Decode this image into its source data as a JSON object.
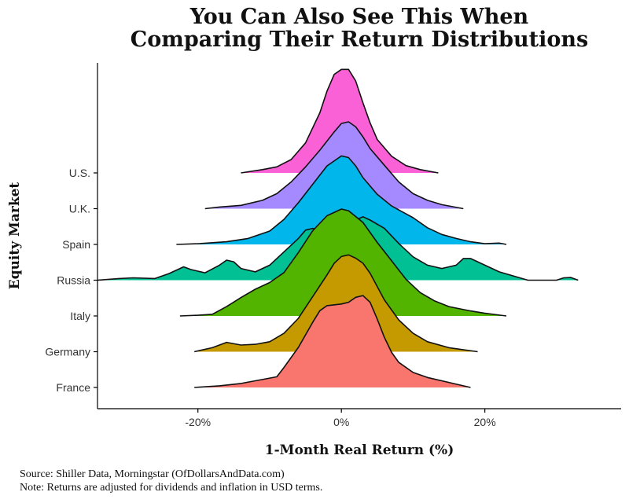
{
  "chart_data": {
    "type": "area",
    "subtype": "ridgeline",
    "title": [
      "You Can Also See This When",
      "Comparing Their Return Distributions"
    ],
    "xlabel": "1-Month Real Return (%)",
    "ylabel": "Equity Market",
    "xlim": [
      -34,
      39
    ],
    "x_ticks": [
      {
        "value": -20,
        "label": "-20%"
      },
      {
        "value": 0,
        "label": "0%"
      },
      {
        "value": 20,
        "label": "20%"
      }
    ],
    "grid": false,
    "legend": "none",
    "series": [
      {
        "name": "France",
        "color": "#F8766D",
        "points": [
          [
            -20.5,
            0
          ],
          [
            -17,
            0.05
          ],
          [
            -14,
            0.12
          ],
          [
            -12,
            0.2
          ],
          [
            -10,
            0.28
          ],
          [
            -9,
            0.32
          ],
          [
            -8,
            0.6
          ],
          [
            -6,
            1.2
          ],
          [
            -4,
            1.95
          ],
          [
            -3,
            2.3
          ],
          [
            -2,
            2.45
          ],
          [
            0,
            2.5
          ],
          [
            1,
            2.55
          ],
          [
            2,
            2.7
          ],
          [
            3,
            2.75
          ],
          [
            4,
            2.55
          ],
          [
            5,
            2.05
          ],
          [
            6,
            1.5
          ],
          [
            7,
            1.05
          ],
          [
            8,
            0.75
          ],
          [
            10,
            0.45
          ],
          [
            12,
            0.3
          ],
          [
            15,
            0.15
          ],
          [
            18,
            0
          ]
        ]
      },
      {
        "name": "Germany",
        "color": "#C49A00",
        "points": [
          [
            -20.5,
            0
          ],
          [
            -18,
            0.12
          ],
          [
            -16,
            0.28
          ],
          [
            -14,
            0.2
          ],
          [
            -12,
            0.22
          ],
          [
            -10,
            0.3
          ],
          [
            -8,
            0.55
          ],
          [
            -6,
            1.0
          ],
          [
            -4,
            1.65
          ],
          [
            -2,
            2.3
          ],
          [
            -1,
            2.65
          ],
          [
            0,
            2.85
          ],
          [
            1,
            2.9
          ],
          [
            2,
            2.8
          ],
          [
            3,
            2.65
          ],
          [
            4,
            2.35
          ],
          [
            5,
            1.95
          ],
          [
            6,
            1.55
          ],
          [
            8,
            0.95
          ],
          [
            10,
            0.55
          ],
          [
            12,
            0.3
          ],
          [
            15,
            0.12
          ],
          [
            19,
            0
          ]
        ]
      },
      {
        "name": "Italy",
        "color": "#53B400",
        "points": [
          [
            -22.5,
            0
          ],
          [
            -20,
            0.02
          ],
          [
            -18,
            0.05
          ],
          [
            -16,
            0.28
          ],
          [
            -14,
            0.55
          ],
          [
            -12,
            0.8
          ],
          [
            -10,
            1.0
          ],
          [
            -8,
            1.3
          ],
          [
            -6,
            1.9
          ],
          [
            -4,
            2.55
          ],
          [
            -2,
            3.0
          ],
          [
            0,
            3.2
          ],
          [
            1,
            3.15
          ],
          [
            3,
            2.8
          ],
          [
            5,
            2.2
          ],
          [
            7,
            1.65
          ],
          [
            9,
            1.1
          ],
          [
            11,
            0.7
          ],
          [
            13,
            0.45
          ],
          [
            15,
            0.28
          ],
          [
            18,
            0.15
          ],
          [
            20,
            0.08
          ],
          [
            23,
            0
          ]
        ]
      },
      {
        "name": "Russia",
        "color": "#00C094",
        "points": [
          [
            -34,
            0
          ],
          [
            -31,
            0.05
          ],
          [
            -29,
            0.07
          ],
          [
            -26,
            0.05
          ],
          [
            -24,
            0.2
          ],
          [
            -22,
            0.4
          ],
          [
            -21,
            0.32
          ],
          [
            -19,
            0.22
          ],
          [
            -17,
            0.45
          ],
          [
            -16,
            0.6
          ],
          [
            -15,
            0.55
          ],
          [
            -14,
            0.35
          ],
          [
            -12,
            0.25
          ],
          [
            -10,
            0.45
          ],
          [
            -8,
            0.85
          ],
          [
            -6,
            1.25
          ],
          [
            -5,
            1.5
          ],
          [
            -4,
            1.55
          ],
          [
            -2,
            1.4
          ],
          [
            0,
            1.45
          ],
          [
            1,
            1.65
          ],
          [
            2,
            1.8
          ],
          [
            3,
            1.9
          ],
          [
            4,
            1.8
          ],
          [
            6,
            1.55
          ],
          [
            8,
            1.1
          ],
          [
            10,
            0.7
          ],
          [
            12,
            0.45
          ],
          [
            14,
            0.35
          ],
          [
            16,
            0.45
          ],
          [
            17,
            0.65
          ],
          [
            18,
            0.65
          ],
          [
            20,
            0.45
          ],
          [
            22,
            0.25
          ],
          [
            26,
            0
          ],
          [
            30,
            0
          ],
          [
            31,
            0.07
          ],
          [
            32,
            0.08
          ],
          [
            33,
            0
          ]
        ]
      },
      {
        "name": "Spain",
        "color": "#00B6EB",
        "points": [
          [
            -23,
            0
          ],
          [
            -20,
            0.02
          ],
          [
            -16,
            0.08
          ],
          [
            -13,
            0.18
          ],
          [
            -10,
            0.4
          ],
          [
            -8,
            0.75
          ],
          [
            -6,
            1.25
          ],
          [
            -4,
            1.8
          ],
          [
            -2,
            2.35
          ],
          [
            0,
            2.65
          ],
          [
            1,
            2.6
          ],
          [
            2,
            2.35
          ],
          [
            3,
            2.0
          ],
          [
            5,
            1.5
          ],
          [
            7,
            1.15
          ],
          [
            10,
            0.8
          ],
          [
            12,
            0.5
          ],
          [
            14,
            0.3
          ],
          [
            16,
            0.18
          ],
          [
            18,
            0.08
          ],
          [
            20,
            0.02
          ],
          [
            22,
            0.04
          ],
          [
            23,
            0
          ]
        ]
      },
      {
        "name": "U.K.",
        "color": "#A58AFF",
        "points": [
          [
            -19,
            0
          ],
          [
            -17,
            0.05
          ],
          [
            -14,
            0.1
          ],
          [
            -11,
            0.25
          ],
          [
            -9,
            0.45
          ],
          [
            -7,
            0.8
          ],
          [
            -5,
            1.25
          ],
          [
            -3,
            1.75
          ],
          [
            -1,
            2.3
          ],
          [
            0,
            2.55
          ],
          [
            1,
            2.6
          ],
          [
            2,
            2.45
          ],
          [
            3,
            2.15
          ],
          [
            4,
            1.8
          ],
          [
            6,
            1.3
          ],
          [
            8,
            0.8
          ],
          [
            10,
            0.45
          ],
          [
            12,
            0.25
          ],
          [
            14,
            0.12
          ],
          [
            17,
            0
          ]
        ]
      },
      {
        "name": "U.S.",
        "color": "#FB61D7",
        "points": [
          [
            -14,
            0
          ],
          [
            -11,
            0.1
          ],
          [
            -9,
            0.18
          ],
          [
            -7,
            0.4
          ],
          [
            -5,
            0.9
          ],
          [
            -3,
            1.8
          ],
          [
            -2,
            2.45
          ],
          [
            -1,
            2.95
          ],
          [
            0,
            3.1
          ],
          [
            1,
            3.1
          ],
          [
            2,
            2.75
          ],
          [
            3,
            2.1
          ],
          [
            4,
            1.5
          ],
          [
            5,
            1.0
          ],
          [
            7,
            0.5
          ],
          [
            9,
            0.22
          ],
          [
            11,
            0.1
          ],
          [
            13.5,
            0
          ]
        ]
      }
    ]
  },
  "caption": {
    "source": "Source:  Shiller Data, Morningstar (OfDollarsAndData.com)",
    "note": "Note:  Returns are adjusted for dividends and inflation in USD terms."
  }
}
